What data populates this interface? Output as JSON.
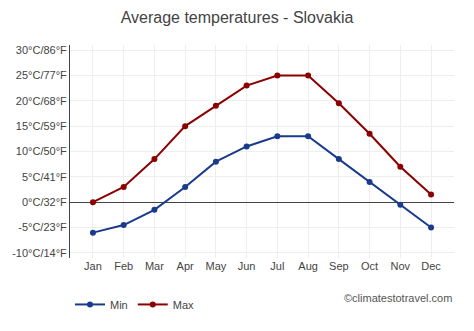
{
  "chart_data": {
    "type": "line",
    "title": "Average temperatures - Slovakia",
    "categories": [
      "Jan",
      "Feb",
      "Mar",
      "Apr",
      "May",
      "Jun",
      "Jul",
      "Aug",
      "Sep",
      "Oct",
      "Nov",
      "Dec"
    ],
    "series": [
      {
        "name": "Min",
        "color": "#1a3a8c",
        "values": [
          -6,
          -4.5,
          -1.5,
          3,
          8,
          11,
          13,
          13,
          8.5,
          4,
          -0.5,
          -5
        ]
      },
      {
        "name": "Max",
        "color": "#8b0000",
        "values": [
          0,
          3,
          8.5,
          15,
          19,
          23,
          25,
          25,
          19.5,
          13.5,
          7,
          1.5
        ]
      }
    ],
    "ylim": [
      -11,
      31
    ],
    "yticks": [
      {
        "value": -10,
        "label": "-10°C/14°F"
      },
      {
        "value": -5,
        "label": "-5°C/23°F"
      },
      {
        "value": 0,
        "label": "0°C/32°F"
      },
      {
        "value": 5,
        "label": "5°C/41°F"
      },
      {
        "value": 10,
        "label": "10°C/50°F"
      },
      {
        "value": 15,
        "label": "15°C/59°F"
      },
      {
        "value": 20,
        "label": "20°C/68°F"
      },
      {
        "value": 25,
        "label": "25°C/77°F"
      },
      {
        "value": 30,
        "label": "30°C/86°F"
      }
    ],
    "grid": true,
    "legend": "bottom left",
    "marker": "circle",
    "annotations": [
      {
        "text": "©climatestotravel.com"
      }
    ]
  }
}
